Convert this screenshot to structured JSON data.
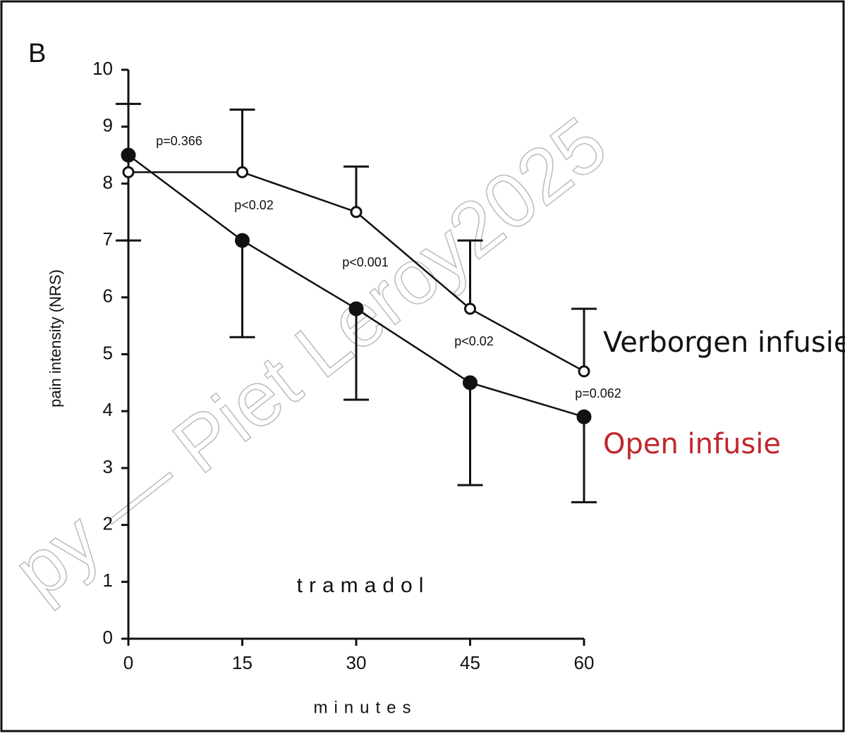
{
  "chart_data": {
    "type": "line",
    "panel_label": "B",
    "title": "tramadol",
    "x_label": "minutes",
    "y_label": "pain intensity (NRS)",
    "x": [
      0,
      15,
      30,
      45,
      60
    ],
    "xlim": [
      0,
      60
    ],
    "xticks": [
      0,
      15,
      30,
      45,
      60
    ],
    "ylim": [
      0,
      10
    ],
    "yticks": [
      0,
      1,
      2,
      3,
      4,
      5,
      6,
      7,
      8,
      9,
      10
    ],
    "series": [
      {
        "name": "Verborgen infusie",
        "color": "#111111",
        "marker": "open",
        "values": [
          8.2,
          8.2,
          7.5,
          5.8,
          4.7
        ],
        "errors": [
          1.2,
          1.1,
          0.8,
          1.2,
          1.1
        ],
        "error_direction": "up"
      },
      {
        "name": "Open infusie",
        "color": "#c0272d",
        "marker": "filled",
        "values": [
          8.5,
          7.0,
          5.8,
          4.5,
          3.9
        ],
        "errors": [
          null,
          1.7,
          1.6,
          1.8,
          1.5
        ],
        "error_direction": "down"
      }
    ],
    "annotations": [
      "p=0.366",
      "p<0.02",
      "p<0.001",
      "p<0.02",
      "p=0.062"
    ],
    "watermark": "py — Piet Leroy2025"
  }
}
